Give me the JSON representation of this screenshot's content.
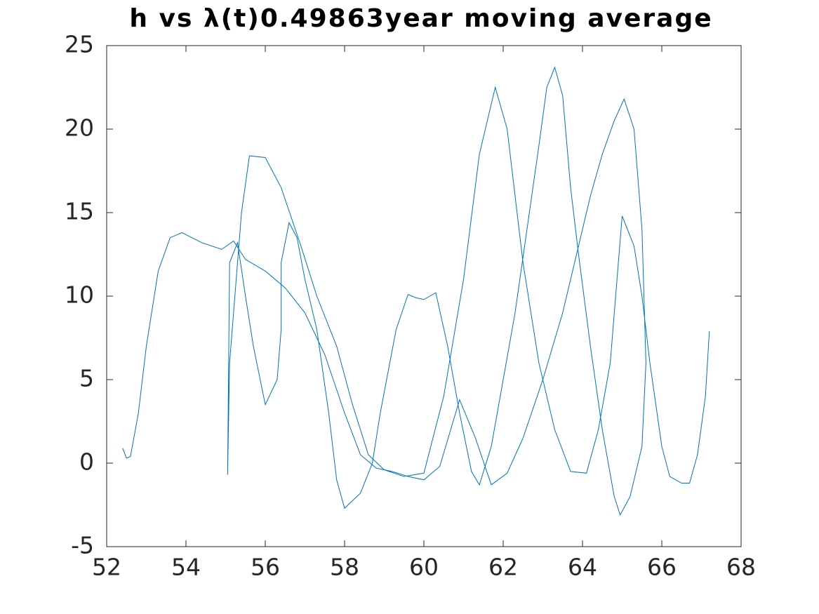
{
  "chart_data": {
    "type": "line",
    "title": "h vs λ(t)0.49863year moving average",
    "series": [
      {
        "color": "#0072bd",
        "x": [
          52.4,
          52.5,
          52.6,
          52.8,
          53.0,
          53.3,
          53.6,
          53.9,
          54.4,
          54.9,
          55.2,
          55.5,
          56.0,
          56.5,
          57.0,
          57.5,
          58.0,
          58.4,
          58.8,
          59.2,
          59.6,
          60.0,
          60.4,
          60.9,
          61.3,
          61.7,
          62.1,
          62.5,
          63.0,
          63.5,
          63.9,
          64.2,
          64.5,
          64.8,
          65.05,
          65.3,
          65.5,
          65.6,
          65.5,
          65.2,
          64.95,
          64.8,
          64.5,
          64.2,
          63.9,
          63.7,
          63.5,
          63.3,
          63.1,
          62.9,
          62.6,
          62.3,
          62.0,
          61.7,
          61.4,
          61.2,
          60.9,
          60.6,
          60.3,
          60.0,
          59.8,
          59.6,
          59.3,
          58.9,
          58.7,
          58.4,
          58.0,
          57.8,
          57.6,
          57.3,
          57.0,
          56.8,
          56.6,
          56.4,
          56.4,
          56.3,
          56.0,
          55.7,
          55.5,
          55.3,
          55.1,
          55.05,
          55.1,
          55.3,
          55.4,
          55.6,
          56.0,
          56.4,
          56.9,
          57.3,
          57.8,
          58.2,
          58.6,
          59.0,
          59.5,
          60.0,
          60.5,
          61.0,
          61.4,
          61.8,
          62.1,
          62.5,
          62.9,
          63.3,
          63.7,
          64.1,
          64.4,
          64.7,
          65.0,
          65.3,
          65.5,
          65.7,
          66.0,
          66.2,
          66.5,
          66.7,
          66.9,
          67.1,
          67.2
        ],
        "values": [
          0.9,
          0.3,
          0.4,
          3,
          7,
          11.5,
          13.5,
          13.8,
          13.2,
          12.8,
          13.3,
          12.2,
          11.5,
          10.5,
          9,
          6.5,
          3,
          0.5,
          -0.3,
          -0.5,
          -0.8,
          -1,
          -0.2,
          3.8,
          1.5,
          -1.3,
          -0.6,
          1.5,
          5,
          9,
          13,
          16,
          18.5,
          20.5,
          21.8,
          20,
          14,
          6,
          1,
          -2,
          -3.1,
          -2,
          2,
          7,
          12.5,
          16.5,
          22,
          23.7,
          22.5,
          19,
          14,
          9,
          5,
          1,
          -1.3,
          -0.5,
          3,
          7,
          10.2,
          9.8,
          9.9,
          10.1,
          8,
          3,
          0,
          -1.8,
          -2.7,
          -1,
          3,
          8,
          11,
          13.5,
          14.4,
          12,
          8,
          5,
          3.5,
          7,
          10,
          13.2,
          12,
          -0.7,
          6,
          12,
          15,
          18.4,
          18.3,
          16.5,
          13,
          10,
          7,
          3.5,
          0.5,
          -0.4,
          -0.8,
          -0.6,
          4,
          11,
          18.5,
          22.5,
          20,
          12,
          6,
          2,
          -0.5,
          -0.6,
          2,
          6,
          14.8,
          13,
          10,
          6,
          1,
          -0.8,
          -1.2,
          -1.2,
          0.5,
          4,
          7.9
        ]
      }
    ],
    "xlim": [
      52,
      68
    ],
    "xticks": [
      52,
      54,
      56,
      58,
      60,
      62,
      64,
      66,
      68
    ],
    "ylim": [
      -5,
      25
    ],
    "yticks": [
      -5,
      0,
      5,
      10,
      15,
      20,
      25
    ],
    "grid": false
  }
}
